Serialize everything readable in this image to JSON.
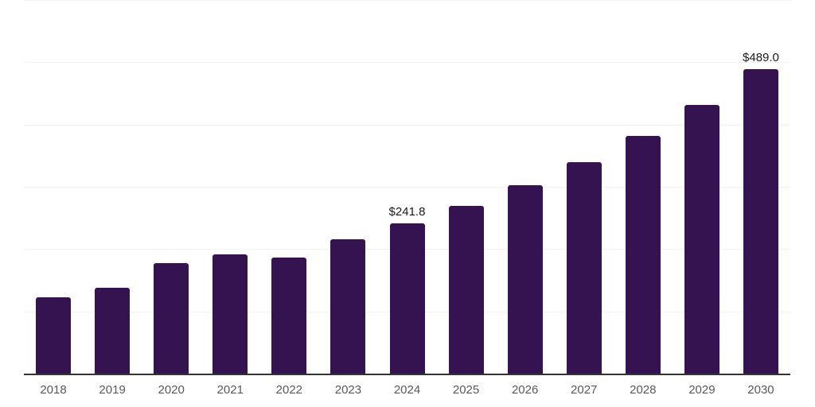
{
  "chart_data": {
    "type": "bar",
    "title": "",
    "xlabel": "",
    "ylabel": "",
    "categories": [
      "2018",
      "2019",
      "2020",
      "2021",
      "2022",
      "2023",
      "2024",
      "2025",
      "2026",
      "2027",
      "2028",
      "2029",
      "2030"
    ],
    "values": [
      123,
      138,
      177,
      192,
      187,
      216,
      241.8,
      269,
      303,
      339,
      382,
      432,
      489
    ],
    "point_labels": [
      "",
      "",
      "",
      "",
      "",
      "",
      "$241.8",
      "",
      "",
      "",
      "",
      "",
      "$489.0"
    ],
    "ylim": [
      0,
      600
    ],
    "gridline_interval": 100,
    "grid": "horizontal-only",
    "y_tick_labels_shown": false,
    "legend": "none",
    "colors": {
      "bar": "#341350",
      "axis_line": "#333333",
      "gridline": "#f2f2f2",
      "tick_label": "#595959",
      "data_label": "#1a1a1a",
      "background": "#ffffff"
    }
  }
}
